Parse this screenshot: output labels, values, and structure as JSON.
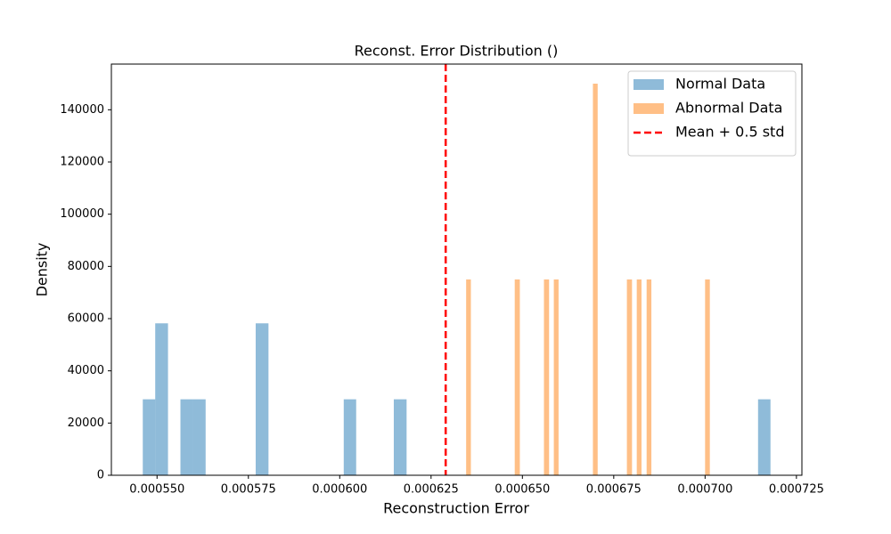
{
  "chart_data": {
    "type": "histogram",
    "title": "Reconst. Error Distribution ()",
    "xlabel": "Reconstruction Error",
    "ylabel": "Density",
    "xlim": [
      0.0005375,
      0.0007265
    ],
    "ylim": [
      0,
      157500
    ],
    "xticks": [
      {
        "value": 0.00055,
        "label": "0.000550"
      },
      0.000575,
      {
        "value": 0.0006,
        "label": "0.000600"
      },
      0.000625,
      {
        "value": 0.00065,
        "label": "0.000650"
      },
      0.000675,
      {
        "value": 0.0007,
        "label": "0.000700"
      },
      0.000725
    ],
    "yticks": [
      0,
      20000,
      40000,
      60000,
      80000,
      100000,
      120000,
      140000
    ],
    "legend": "upper right",
    "series": [
      {
        "name": "Normal Data",
        "color": "#1f77b4",
        "bins": [
          0.0005461,
          0.0005495,
          0.000553,
          0.0005564,
          0.0005598,
          0.0005633,
          0.0005667,
          0.0005702,
          0.0005736,
          0.000577,
          0.0005805,
          0.0005839,
          0.0005873,
          0.0005908,
          0.0005942,
          0.0005976,
          0.0006011,
          0.0006045,
          0.0006079,
          0.0006114,
          0.0006148,
          0.0006183,
          0.0006217,
          0.0006251,
          0.0006286,
          0.000632,
          0.0006354,
          0.0006389,
          0.0006423,
          0.0006457,
          0.0006492,
          0.0006526,
          0.000656,
          0.0006595,
          0.0006629,
          0.0006664,
          0.0006698,
          0.0006732,
          0.0006767,
          0.0006801,
          0.0006835,
          0.000687,
          0.0006904,
          0.0006938,
          0.0006973,
          0.0007007,
          0.0007041,
          0.0007076,
          0.000711,
          0.0007145,
          0.0007179
        ],
        "values": [
          29100,
          58200,
          0,
          29100,
          29100,
          0,
          0,
          0,
          0,
          58200,
          0,
          0,
          0,
          0,
          0,
          0,
          29100,
          0,
          0,
          0,
          29100,
          0,
          0,
          0,
          0,
          0,
          0,
          0,
          0,
          0,
          0,
          0,
          0,
          0,
          0,
          0,
          0,
          0,
          0,
          0,
          0,
          0,
          0,
          0,
          0,
          0,
          0,
          0,
          0,
          29100
        ]
      },
      {
        "name": "Abnormal Data",
        "color": "#ff7f0e",
        "bins": [
          0.0006346,
          0.0006359,
          0.0006373,
          0.0006386,
          0.0006399,
          0.0006413,
          0.0006426,
          0.0006439,
          0.0006453,
          0.0006466,
          0.0006479,
          0.0006493,
          0.0006506,
          0.0006519,
          0.0006533,
          0.0006546,
          0.0006559,
          0.0006573,
          0.0006586,
          0.0006599,
          0.0006613,
          0.0006626,
          0.0006639,
          0.0006653,
          0.0006666,
          0.000668,
          0.0006693,
          0.0006706,
          0.000672,
          0.0006733,
          0.0006746,
          0.000676,
          0.0006773,
          0.0006786,
          0.00068,
          0.0006813,
          0.0006826,
          0.000684,
          0.0006853,
          0.0006866,
          0.000688,
          0.0006893,
          0.0006906,
          0.000692,
          0.0006933,
          0.0006946,
          0.000696,
          0.0006973,
          0.0006986,
          0.0007,
          0.0007013
        ],
        "values": [
          75000,
          0,
          0,
          0,
          0,
          0,
          0,
          0,
          0,
          0,
          75000,
          0,
          0,
          0,
          0,
          0,
          75000,
          0,
          75000,
          0,
          0,
          0,
          0,
          0,
          0,
          0,
          150000,
          0,
          0,
          0,
          0,
          0,
          0,
          75000,
          0,
          75000,
          0,
          75000,
          0,
          0,
          0,
          0,
          0,
          0,
          0,
          0,
          0,
          0,
          0,
          75000
        ]
      }
    ],
    "threshold": {
      "name": "Mean + 0.5 std",
      "value": 0.000629,
      "color": "#ff0000"
    }
  }
}
